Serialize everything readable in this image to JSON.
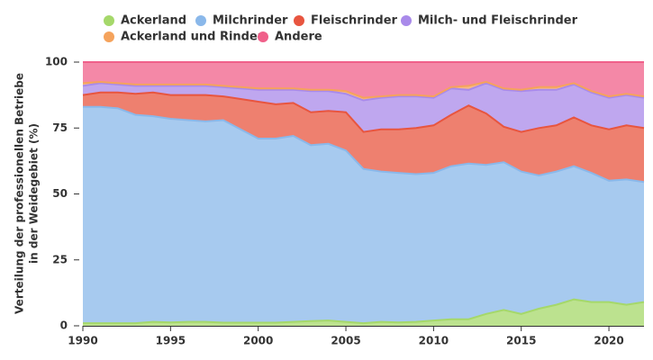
{
  "chart_data": {
    "type": "stacked_area",
    "y_label": [
      "Verteilung der professionellen Betriebe",
      "in der Weidegebiet (%)"
    ],
    "x": [
      1990,
      1991,
      1992,
      1993,
      1994,
      1995,
      1996,
      1997,
      1998,
      1999,
      2000,
      2001,
      2002,
      2003,
      2004,
      2005,
      2006,
      2007,
      2008,
      2009,
      2010,
      2011,
      2012,
      2013,
      2014,
      2015,
      2016,
      2017,
      2018,
      2019,
      2020,
      2021,
      2022
    ],
    "xlim": [
      1990,
      2022
    ],
    "xticks": [
      1990,
      1995,
      2000,
      2005,
      2010,
      2015,
      2020
    ],
    "ylim": [
      0,
      100
    ],
    "yticks": [
      0,
      25,
      50,
      75,
      100
    ],
    "grid": false,
    "legend": "top",
    "series": [
      {
        "name": "Ackerland",
        "color": "#a5d86a",
        "values": [
          1,
          1,
          1,
          1,
          1.5,
          1.3,
          1.5,
          1.5,
          1.2,
          1.2,
          1.2,
          1.2,
          1.5,
          1.8,
          2,
          1.5,
          1,
          1.5,
          1.3,
          1.5,
          2,
          2.5,
          2.5,
          4.5,
          6,
          4.5,
          6.5,
          8,
          10,
          9,
          9,
          8,
          9
        ]
      },
      {
        "name": "Milchrinder",
        "color": "#8ab8ea",
        "values": [
          82,
          82,
          81.5,
          79,
          78,
          77.2,
          76.5,
          76,
          76.8,
          73.3,
          69.8,
          69.8,
          70.5,
          66.7,
          67,
          65,
          58.5,
          57,
          56.7,
          56,
          56,
          58,
          59,
          56.5,
          56,
          54,
          50.5,
          50.5,
          50.5,
          49,
          46,
          47.5,
          45.5
        ]
      },
      {
        "name": "Fleischrinder",
        "color": "#e8553f",
        "values": [
          4.5,
          5.5,
          6,
          8,
          9,
          9,
          9.5,
          10,
          9,
          11.5,
          14,
          13,
          12.5,
          12.5,
          12.5,
          14.5,
          14,
          16,
          16.5,
          17.5,
          18,
          19.5,
          22,
          19.5,
          13.5,
          15,
          18,
          17.5,
          18.5,
          18,
          19.5,
          20.5,
          20.5
        ]
      },
      {
        "name": "Milch- und Fleischrinder",
        "color": "#a98aea",
        "values": [
          3.5,
          3.5,
          3,
          3,
          2.5,
          3.5,
          3.5,
          3.5,
          3.5,
          4,
          4.5,
          5.5,
          5,
          8,
          7.5,
          7,
          12,
          12,
          12.5,
          12,
          10.5,
          10,
          6,
          11.5,
          14,
          15.5,
          14.5,
          13.5,
          12.5,
          12.5,
          12,
          11.5,
          11.5
        ]
      },
      {
        "name": "Ackerland und Rinder",
        "color": "#f5a35c",
        "values": [
          1,
          0.5,
          0.5,
          0.5,
          0.5,
          0.5,
          0.5,
          0.5,
          0.5,
          0.5,
          0.5,
          0.5,
          0.5,
          0.5,
          0.5,
          1,
          1,
          0.5,
          0.5,
          0.5,
          0.5,
          0.5,
          1.5,
          0.5,
          0.5,
          0.5,
          1,
          1,
          0.5,
          0.5,
          0.5,
          0.5,
          0.5
        ]
      },
      {
        "name": "Andere",
        "color": "#f0608a",
        "values": [
          8,
          7.5,
          8,
          8.5,
          8.5,
          8.5,
          8.5,
          8.5,
          9,
          9.5,
          10,
          10,
          10,
          10.5,
          10.5,
          11,
          13.5,
          13,
          12.5,
          12.5,
          13,
          9.5,
          9,
          7.5,
          10,
          10.5,
          9.5,
          9.5,
          8,
          11,
          13,
          12,
          13
        ]
      }
    ]
  }
}
